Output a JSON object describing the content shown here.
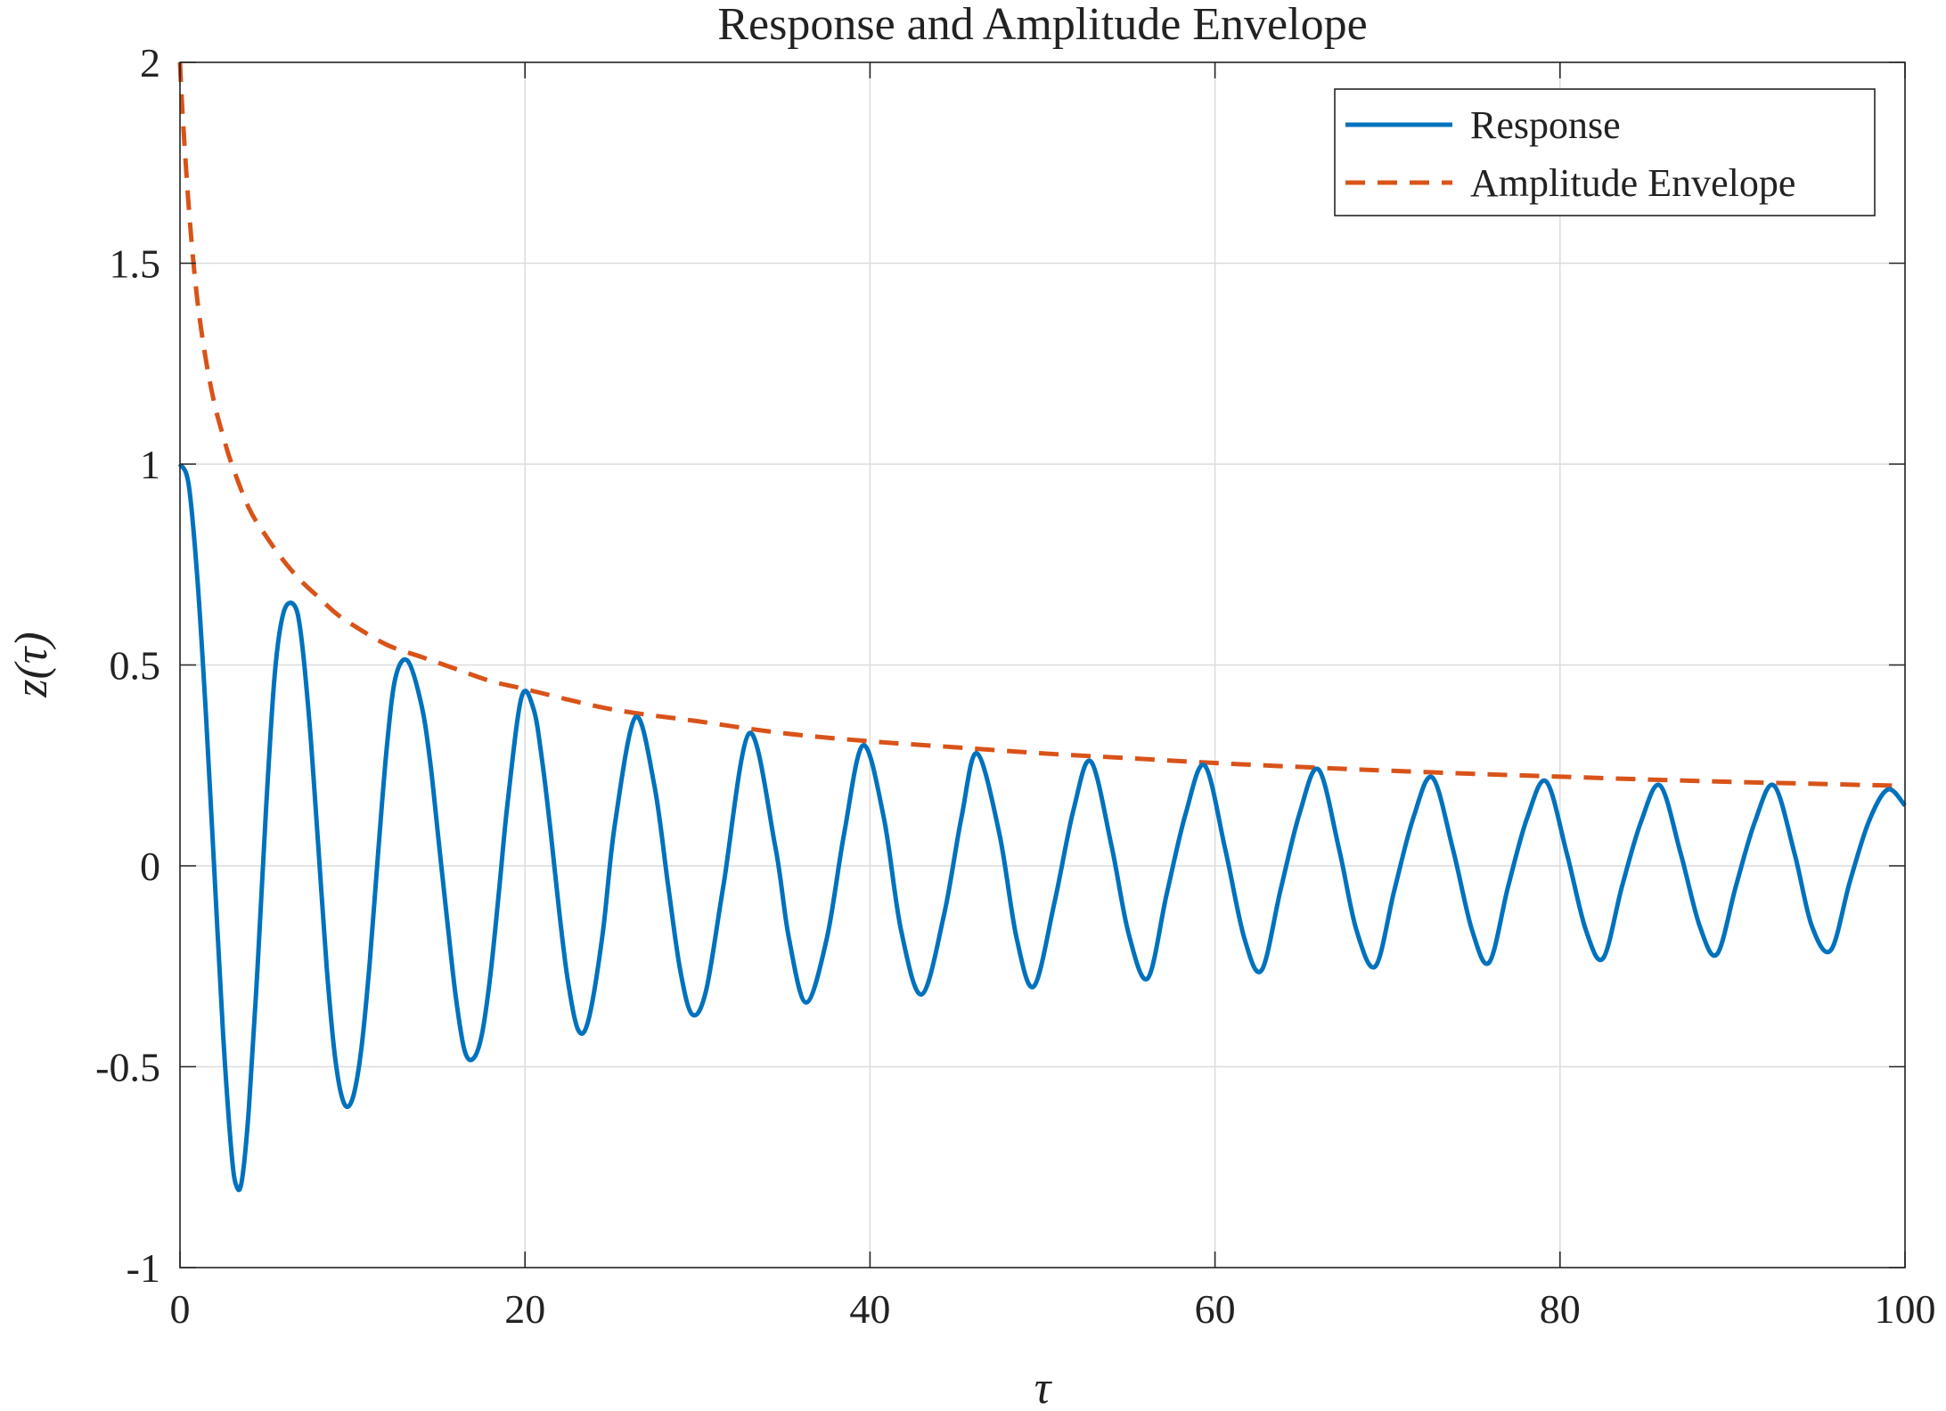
{
  "chart_data": {
    "type": "line",
    "title": "Response and Amplitude Envelope",
    "xlabel": "τ",
    "ylabel": "z(τ)",
    "xlim": [
      0,
      100
    ],
    "ylim": [
      -1,
      2
    ],
    "xticks": [
      0,
      20,
      40,
      60,
      80,
      100
    ],
    "yticks": [
      -1,
      -0.5,
      0,
      0.5,
      1,
      1.5,
      2
    ],
    "xtick_labels": [
      "0",
      "20",
      "40",
      "60",
      "80",
      "100"
    ],
    "ytick_labels": [
      "-1",
      "-0.5",
      "0",
      "0.5",
      "1",
      "1.5",
      "2"
    ],
    "grid": true,
    "legend_position": "top-right",
    "series": [
      {
        "name": "Response",
        "style": "solid",
        "color": "#0072BD",
        "x": [
          0,
          0.5,
          1,
          1.5,
          2,
          2.5,
          3,
          3.3,
          3.6,
          4,
          4.5,
          5,
          5.5,
          6,
          6.6,
          7,
          7.5,
          8,
          8.5,
          9,
          9.5,
          10,
          10.5,
          11,
          11.5,
          12,
          12.5,
          13.2,
          14,
          14.5,
          15,
          15.5,
          16,
          16.5,
          17,
          17.5,
          18,
          18.5,
          19,
          19.8,
          20.5,
          21,
          21.5,
          22,
          22.5,
          23.1,
          23.7,
          24.5,
          25.2,
          26.4,
          27.5,
          28.3,
          29,
          29.7,
          30.5,
          31.5,
          33,
          34.5,
          35.3,
          36.3,
          37.5,
          38.5,
          39.6,
          40.8,
          41.8,
          43,
          44.3,
          45.3,
          46.2,
          47.5,
          48.5,
          49.5,
          50.7,
          51.8,
          52.8,
          54,
          55,
          56.1,
          57.2,
          58.3,
          59.4,
          60.6,
          61.7,
          62.7,
          63.8,
          64.9,
          66,
          67.2,
          68.2,
          69.3,
          70.4,
          71.5,
          72.6,
          73.8,
          74.9,
          75.9,
          77,
          78.1,
          79.2,
          80.4,
          81.5,
          82.5,
          83.6,
          84.7,
          85.8,
          87,
          88.1,
          89.1,
          90.2,
          91.3,
          92.4,
          93.6,
          94.6,
          95.7,
          96.8,
          97.9,
          99,
          100
        ],
        "y": [
          1.0,
          0.95,
          0.72,
          0.38,
          -0.02,
          -0.42,
          -0.72,
          -0.8,
          -0.78,
          -0.6,
          -0.25,
          0.15,
          0.48,
          0.63,
          0.65,
          0.58,
          0.36,
          0.06,
          -0.25,
          -0.48,
          -0.59,
          -0.58,
          -0.46,
          -0.24,
          0.04,
          0.3,
          0.47,
          0.51,
          0.4,
          0.26,
          0.06,
          -0.14,
          -0.33,
          -0.46,
          -0.48,
          -0.42,
          -0.27,
          -0.06,
          0.16,
          0.42,
          0.39,
          0.26,
          0.08,
          -0.12,
          -0.29,
          -0.41,
          -0.38,
          -0.17,
          0.1,
          0.37,
          0.2,
          -0.05,
          -0.26,
          -0.37,
          -0.31,
          -0.05,
          0.33,
          0.05,
          -0.18,
          -0.34,
          -0.18,
          0.08,
          0.3,
          0.12,
          -0.16,
          -0.32,
          -0.12,
          0.12,
          0.28,
          0.08,
          -0.18,
          -0.3,
          -0.09,
          0.14,
          0.26,
          0.05,
          -0.17,
          -0.28,
          -0.07,
          0.13,
          0.25,
          0.04,
          -0.18,
          -0.26,
          -0.06,
          0.13,
          0.24,
          0.04,
          -0.16,
          -0.25,
          -0.06,
          0.12,
          0.22,
          0.04,
          -0.16,
          -0.24,
          -0.05,
          0.12,
          0.21,
          0.03,
          -0.16,
          -0.23,
          -0.05,
          0.11,
          0.2,
          0.03,
          -0.15,
          -0.22,
          -0.05,
          0.11,
          0.2,
          0.03,
          -0.15,
          -0.21,
          -0.04,
          0.11,
          0.19,
          0.15
        ]
      },
      {
        "name": "Amplitude Envelope",
        "style": "dashed",
        "color": "#D95319",
        "x": [
          0,
          0.1,
          0.3,
          0.6,
          1,
          1.5,
          2,
          2.5,
          3,
          4,
          5,
          6,
          7,
          8,
          9,
          10,
          12,
          14,
          16,
          18,
          20,
          25,
          30,
          35,
          40,
          45,
          50,
          55,
          60,
          65,
          70,
          75,
          80,
          85,
          90,
          95,
          100
        ],
        "y": [
          2.0,
          1.91,
          1.77,
          1.59,
          1.41,
          1.26,
          1.15,
          1.07,
          1.0,
          0.89,
          0.82,
          0.76,
          0.71,
          0.67,
          0.63,
          0.6,
          0.55,
          0.52,
          0.49,
          0.46,
          0.44,
          0.39,
          0.36,
          0.33,
          0.31,
          0.295,
          0.28,
          0.268,
          0.256,
          0.246,
          0.237,
          0.229,
          0.222,
          0.215,
          0.209,
          0.204,
          0.199
        ]
      }
    ]
  }
}
